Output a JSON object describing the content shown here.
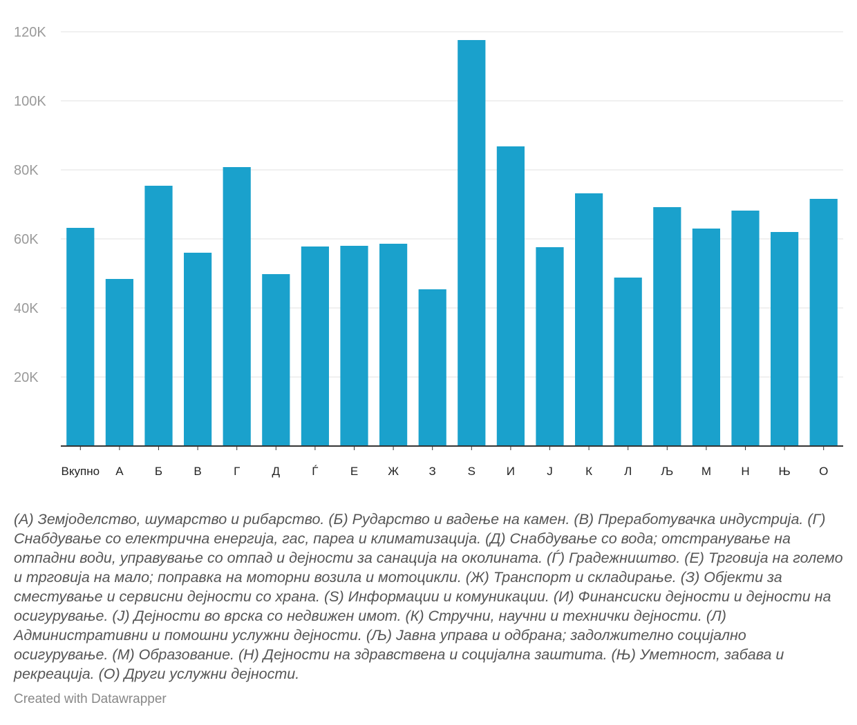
{
  "chart_data": {
    "type": "bar",
    "categories": [
      "Вкупно",
      "А",
      "Б",
      "В",
      "Г",
      "Д",
      "Ѓ",
      "Е",
      "Ж",
      "З",
      "S",
      "И",
      "Ј",
      "К",
      "Л",
      "Љ",
      "М",
      "Н",
      "Њ",
      "О"
    ],
    "values": [
      63200,
      48400,
      75400,
      56000,
      80800,
      49800,
      57800,
      58000,
      58600,
      45400,
      117600,
      86800,
      57600,
      73200,
      48800,
      69200,
      63000,
      68200,
      62000,
      71600
    ],
    "ylim": [
      0,
      120000
    ],
    "yticks": [
      20000,
      40000,
      60000,
      80000,
      100000,
      120000
    ],
    "ytick_labels": [
      "20K",
      "40K",
      "60K",
      "80K",
      "100K",
      "120K"
    ],
    "grid": true,
    "color": "#1aa1cc"
  },
  "notes": "(А) Земјоделство, шумарство и рибарство. (Б) Рударство и вадење на камен. (В) Преработувачка индустрија. (Г) Снабдување со електрична енергија, гас, пареа и климатизација. (Д) Снабдување со вода; отстранување на отпадни води, управување со отпад и дејности за санација на околината. (Ѓ) Градежништво. (Е) Трговија на големо и трговија на мало; поправка на моторни возила и мотоцикли. (Ж) Транспорт и складирање. (З) Објекти за сместување и сервисни дејности со храна. (S) Информации и комуникации. (И) Финансиски дејности и дејности на осигурување. (Ј) Дејности во врска со недвижен имот. (К) Стручни, научни и технички дејности. (Л) Административни и помошни услужни дејности. (Љ) Јавна управа и одбрана; задолжително социјално осигурување. (М) Образование. (Н) Дејности на здравствена и социјална заштита. (Њ) Уметност, забава и рекреација. (О) Други услужни дејности.",
  "credit": "Created with Datawrapper"
}
